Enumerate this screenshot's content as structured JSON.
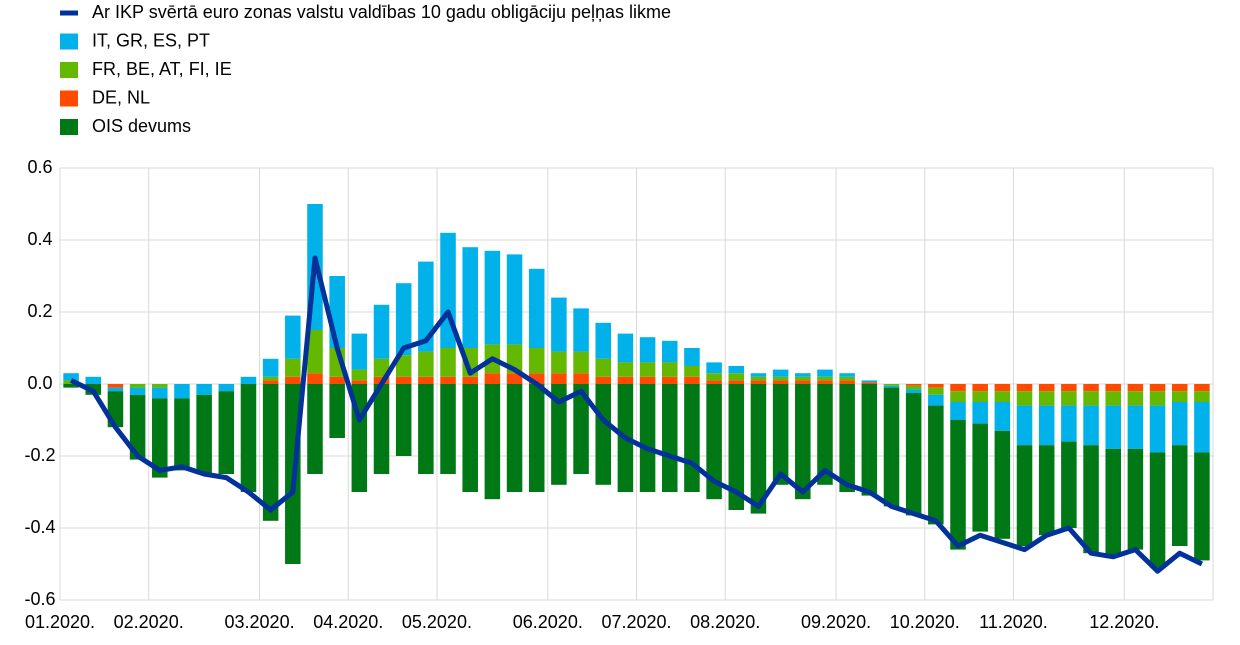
{
  "chart_data": {
    "type": "bar",
    "categories": [
      "01.2020.",
      null,
      null,
      null,
      "02.2020.",
      null,
      null,
      null,
      null,
      "03.2020.",
      null,
      null,
      null,
      "04.2020.",
      null,
      null,
      null,
      "05.2020.",
      null,
      null,
      null,
      null,
      "06.2020.",
      null,
      null,
      null,
      "07.2020.",
      null,
      null,
      null,
      "08.2020.",
      null,
      null,
      null,
      null,
      "09.2020.",
      null,
      null,
      null,
      "10.2020.",
      null,
      null,
      null,
      "11.2020.",
      null,
      null,
      null,
      null,
      "12.2020.",
      null,
      null,
      null
    ],
    "series": [
      {
        "name": "Ar IKP svērtā euro zonas valstu valdības 10 gadu obligāciju peļņas likme",
        "type": "line",
        "color": "#003299",
        "values": [
          0.01,
          -0.02,
          -0.12,
          -0.2,
          -0.24,
          -0.23,
          -0.25,
          -0.26,
          -0.3,
          -0.35,
          -0.3,
          0.35,
          0.1,
          -0.1,
          0.0,
          0.1,
          0.12,
          0.2,
          0.03,
          0.07,
          0.04,
          0.0,
          -0.05,
          -0.02,
          -0.1,
          -0.15,
          -0.18,
          -0.2,
          -0.22,
          -0.27,
          -0.3,
          -0.34,
          -0.25,
          -0.3,
          -0.24,
          -0.28,
          -0.3,
          -0.34,
          -0.36,
          -0.38,
          -0.45,
          -0.42,
          -0.44,
          -0.46,
          -0.42,
          -0.4,
          -0.47,
          -0.48,
          -0.46,
          -0.52,
          -0.47,
          -0.5
        ]
      },
      {
        "name": "IT, GR, ES, PT",
        "type": "bar",
        "color": "#00b1ea",
        "values": [
          0.02,
          0.02,
          -0.01,
          -0.02,
          -0.03,
          -0.04,
          -0.03,
          -0.02,
          0.02,
          0.05,
          0.12,
          0.35,
          0.2,
          0.1,
          0.15,
          0.2,
          0.25,
          0.32,
          0.28,
          0.26,
          0.25,
          0.22,
          0.15,
          0.12,
          0.1,
          0.08,
          0.07,
          0.06,
          0.05,
          0.03,
          0.02,
          0.01,
          0.02,
          0.01,
          0.02,
          0.01,
          0.005,
          -0.005,
          -0.01,
          -0.03,
          -0.05,
          -0.06,
          -0.08,
          -0.11,
          -0.11,
          -0.1,
          -0.11,
          -0.12,
          -0.12,
          -0.13,
          -0.12,
          -0.14
        ]
      },
      {
        "name": "FR, BE, AT, FI, IE",
        "type": "bar",
        "color": "#65b800",
        "values": [
          0.01,
          0,
          0,
          -0.01,
          -0.01,
          0,
          0,
          0,
          0,
          0.01,
          0.05,
          0.12,
          0.08,
          0.03,
          0.05,
          0.06,
          0.07,
          0.08,
          0.08,
          0.08,
          0.08,
          0.07,
          0.06,
          0.06,
          0.05,
          0.04,
          0.04,
          0.04,
          0.03,
          0.02,
          0.02,
          0.01,
          0.01,
          0.01,
          0.01,
          0.01,
          0,
          -0.005,
          -0.01,
          -0.02,
          -0.03,
          -0.03,
          -0.03,
          -0.04,
          -0.04,
          -0.04,
          -0.04,
          -0.04,
          -0.04,
          -0.04,
          -0.03,
          -0.03
        ]
      },
      {
        "name": "DE, NL",
        "type": "bar",
        "color": "#ff4b00",
        "values": [
          0,
          0,
          -0.01,
          0,
          0,
          0,
          0,
          0,
          0,
          0.01,
          0.02,
          0.03,
          0.02,
          0.01,
          0.02,
          0.02,
          0.02,
          0.02,
          0.02,
          0.03,
          0.03,
          0.03,
          0.03,
          0.03,
          0.02,
          0.02,
          0.02,
          0.02,
          0.02,
          0.01,
          0.01,
          0.01,
          0.01,
          0.01,
          0.01,
          0.01,
          0.005,
          0,
          -0.005,
          -0.01,
          -0.02,
          -0.02,
          -0.02,
          -0.02,
          -0.02,
          -0.02,
          -0.02,
          -0.02,
          -0.02,
          -0.02,
          -0.02,
          -0.02
        ]
      },
      {
        "name": "OIS devums",
        "type": "bar",
        "color": "#007816",
        "values": [
          -0.01,
          -0.03,
          -0.1,
          -0.18,
          -0.22,
          -0.2,
          -0.22,
          -0.23,
          -0.3,
          -0.38,
          -0.5,
          -0.25,
          -0.15,
          -0.3,
          -0.25,
          -0.2,
          -0.25,
          -0.25,
          -0.3,
          -0.32,
          -0.3,
          -0.3,
          -0.28,
          -0.25,
          -0.28,
          -0.3,
          -0.3,
          -0.3,
          -0.3,
          -0.32,
          -0.35,
          -0.36,
          -0.28,
          -0.32,
          -0.28,
          -0.3,
          -0.31,
          -0.33,
          -0.34,
          -0.33,
          -0.36,
          -0.3,
          -0.3,
          -0.28,
          -0.25,
          -0.24,
          -0.3,
          -0.3,
          -0.28,
          -0.32,
          -0.28,
          -0.3
        ]
      }
    ],
    "ylim": [
      -0.6,
      0.6
    ],
    "yticks": [
      -0.6,
      -0.4,
      -0.2,
      {
        "value": 0,
        "label": "0.0"
      },
      0.2,
      0.4,
      0.6
    ],
    "grid": true
  }
}
